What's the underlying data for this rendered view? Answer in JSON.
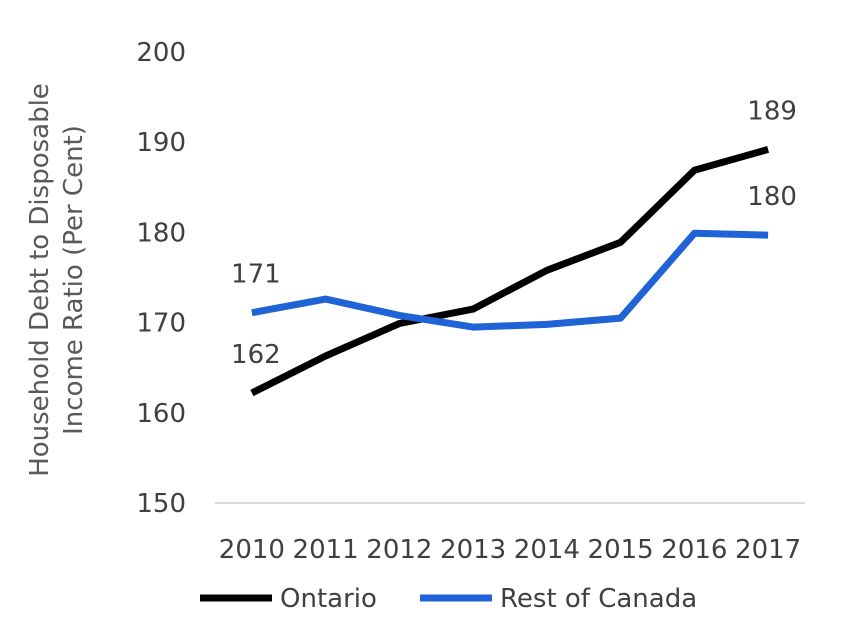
{
  "chart_data": {
    "type": "line",
    "ylabel": [
      "Household Debt to  Disposable",
      "Income Ratio  (Per Cent)"
    ],
    "xlabel": "",
    "categories": [
      "2010",
      "2011",
      "2012",
      "2013",
      "2014",
      "2015",
      "2016",
      "2017"
    ],
    "ylim": [
      150,
      200
    ],
    "yticks": [
      "150",
      "160",
      "170",
      "180",
      "190",
      "200"
    ],
    "grid": false,
    "legend_position": "bottom",
    "series": [
      {
        "name": "Ontario",
        "color": "#000000",
        "values": [
          162.2,
          166.3,
          169.9,
          171.5,
          175.8,
          178.9,
          186.9,
          189.2
        ],
        "labels": [
          {
            "index": 0,
            "text": "162",
            "position": "above"
          },
          {
            "index": 7,
            "text": "189",
            "position": "above"
          }
        ]
      },
      {
        "name": "Rest of Canada",
        "color": "#1F63D6",
        "values": [
          171.1,
          172.6,
          170.8,
          169.5,
          169.8,
          170.5,
          179.9,
          179.7
        ],
        "labels": [
          {
            "index": 0,
            "text": "171",
            "position": "above"
          },
          {
            "index": 7,
            "text": "180",
            "position": "above"
          }
        ]
      }
    ]
  }
}
